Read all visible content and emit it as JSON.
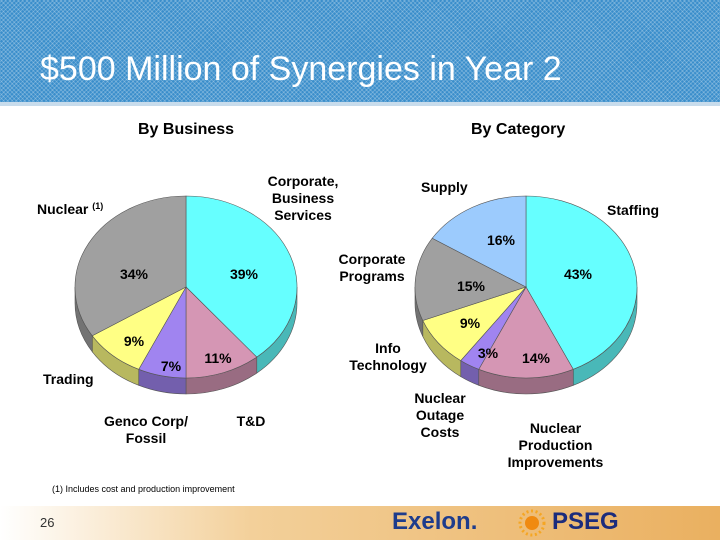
{
  "title": "$500 Million of Synergies in Year 2",
  "page_number": "26",
  "footnote": "(1) Includes cost and production improvement",
  "logos": {
    "exelon": "Exelon.",
    "pseg": "PSEG"
  },
  "colors": {
    "cyan": "#66ffff",
    "pink": "#d596b4",
    "purple": "#a084f0",
    "yellow": "#ffff84",
    "gray": "#a0a0a0",
    "lightblue": "#9ccbfd"
  },
  "chart_data": [
    {
      "type": "pie",
      "title": "By Business",
      "unit": "%",
      "slices": [
        {
          "label": "Corporate, Business Services",
          "value": 39,
          "color": "#66ffff"
        },
        {
          "label": "T&D",
          "value": 11,
          "color": "#d596b4"
        },
        {
          "label": "Genco Corp/ Fossil",
          "value": 7,
          "color": "#a084f0"
        },
        {
          "label": "Trading",
          "value": 9,
          "color": "#ffff84"
        },
        {
          "label": "Nuclear",
          "label_note": "(1)",
          "value": 34,
          "color": "#a0a0a0"
        }
      ],
      "value_labels": [
        "39%",
        "11%",
        "7%",
        "9%",
        "34%"
      ]
    },
    {
      "type": "pie",
      "title": "By Category",
      "unit": "%",
      "slices": [
        {
          "label": "Staffing",
          "value": 43,
          "color": "#66ffff"
        },
        {
          "label": "Nuclear Production Improvements",
          "value": 14,
          "color": "#d596b4"
        },
        {
          "label": "Nuclear Outage Costs",
          "value": 3,
          "color": "#a084f0"
        },
        {
          "label": "Info Technology",
          "value": 9,
          "color": "#ffff84"
        },
        {
          "label": "Corporate Programs",
          "value": 15,
          "color": "#a0a0a0"
        },
        {
          "label": "Supply",
          "value": 16,
          "color": "#9ccbfd"
        }
      ],
      "value_labels": [
        "43%",
        "14%",
        "3%",
        "9%",
        "15%",
        "16%"
      ]
    }
  ]
}
